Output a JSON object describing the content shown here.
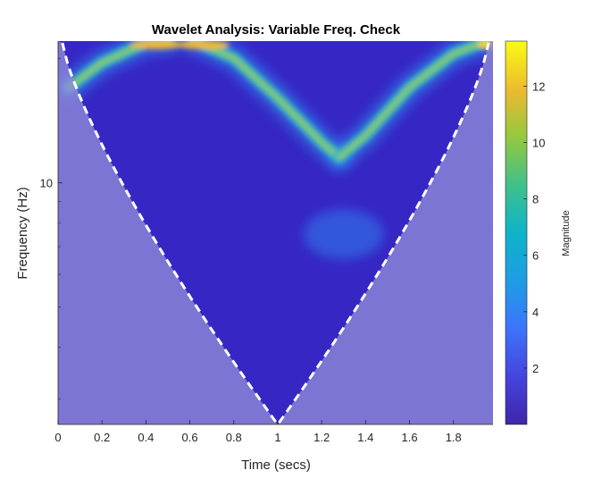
{
  "chart_data": {
    "type": "heatmap",
    "title": "Wavelet Analysis: Variable Freq. Check",
    "xlabel": "Time (secs)",
    "ylabel": "Frequency (Hz)",
    "xlim": [
      0,
      1.98
    ],
    "ylim_log": [
      2.6,
      22
    ],
    "y_scale": "log",
    "x_ticks": [
      0,
      0.2,
      0.4,
      0.6,
      0.8,
      1,
      1.2,
      1.4,
      1.6,
      1.8
    ],
    "x_tick_labels": [
      "0",
      "0.2",
      "0.4",
      "0.6",
      "0.8",
      "1",
      "1.2",
      "1.4",
      "1.6",
      "1.8"
    ],
    "y_ticks": [
      10
    ],
    "y_tick_labels": [
      "10"
    ],
    "colorbar": {
      "label": "Magnitude",
      "range": [
        0,
        13.6
      ],
      "ticks": [
        2,
        4,
        6,
        8,
        10,
        12
      ],
      "tick_labels": [
        "2",
        "4",
        "6",
        "8",
        "10",
        "12"
      ],
      "colormap": "parula"
    },
    "ridges": [
      {
        "points": [
          [
            0.05,
            17
          ],
          [
            0.2,
            19.5
          ],
          [
            0.4,
            21.8
          ],
          [
            0.5,
            22
          ]
        ]
      },
      {
        "points": [
          [
            0.62,
            22
          ],
          [
            0.8,
            20
          ],
          [
            1.0,
            16
          ],
          [
            1.2,
            12.5
          ],
          [
            1.28,
            11.5
          ]
        ]
      },
      {
        "points": [
          [
            1.28,
            11.5
          ],
          [
            1.4,
            13
          ],
          [
            1.6,
            17
          ],
          [
            1.8,
            20.5
          ],
          [
            1.95,
            22
          ]
        ]
      }
    ],
    "cone_of_influence": {
      "style": "white dashed",
      "apex_x": 1.0
    }
  }
}
